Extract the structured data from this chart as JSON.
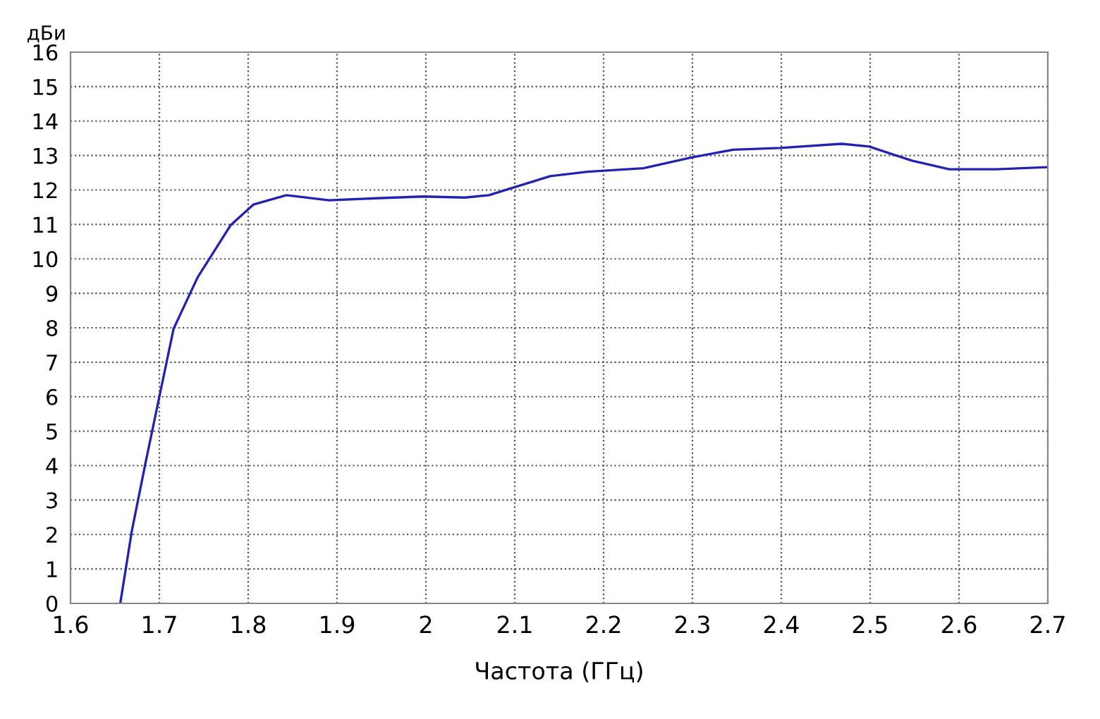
{
  "chart_data": {
    "type": "line",
    "xlabel": "Частота (ГГц)",
    "ylabel": "дБи",
    "xlim": [
      1.6,
      2.7
    ],
    "xticks": [
      {
        "value": 1.6,
        "label": "1.6"
      },
      {
        "value": 1.7,
        "label": "1.7"
      },
      {
        "value": 1.8,
        "label": "1.8"
      },
      {
        "value": 1.9,
        "label": "1.9"
      },
      {
        "value": 2.0,
        "label": "2"
      },
      {
        "value": 2.1,
        "label": "2.1"
      },
      {
        "value": 2.2,
        "label": "2.2"
      },
      {
        "value": 2.3,
        "label": "2.3"
      },
      {
        "value": 2.4,
        "label": "2.4"
      },
      {
        "value": 2.5,
        "label": "2.5"
      },
      {
        "value": 2.6,
        "label": "2.6"
      },
      {
        "value": 2.7,
        "label": "2.7"
      }
    ],
    "ylim": [
      0,
      16
    ],
    "yticks": [
      0,
      1,
      2,
      3,
      4,
      5,
      6,
      7,
      8,
      9,
      10,
      11,
      12,
      13,
      14,
      15,
      16
    ],
    "grid": true,
    "marker": "none",
    "line_style": "solid",
    "series": [
      {
        "color": "#2323b0",
        "x": [
          1.656,
          1.669,
          1.685,
          1.7,
          1.716,
          1.743,
          1.78,
          1.806,
          1.843,
          1.891,
          1.944,
          1.997,
          2.044,
          2.071,
          2.097,
          2.14,
          2.182,
          2.245,
          2.298,
          2.346,
          2.399,
          2.468,
          2.499,
          2.547,
          2.589,
          2.642,
          2.698
        ],
        "values": [
          0,
          2.1,
          4.15,
          6.0,
          7.97,
          9.46,
          10.97,
          11.58,
          11.85,
          11.7,
          11.76,
          11.81,
          11.78,
          11.85,
          12.06,
          12.4,
          12.53,
          12.63,
          12.94,
          13.17,
          13.22,
          13.34,
          13.26,
          12.85,
          12.6,
          12.6,
          12.66
        ]
      }
    ]
  }
}
